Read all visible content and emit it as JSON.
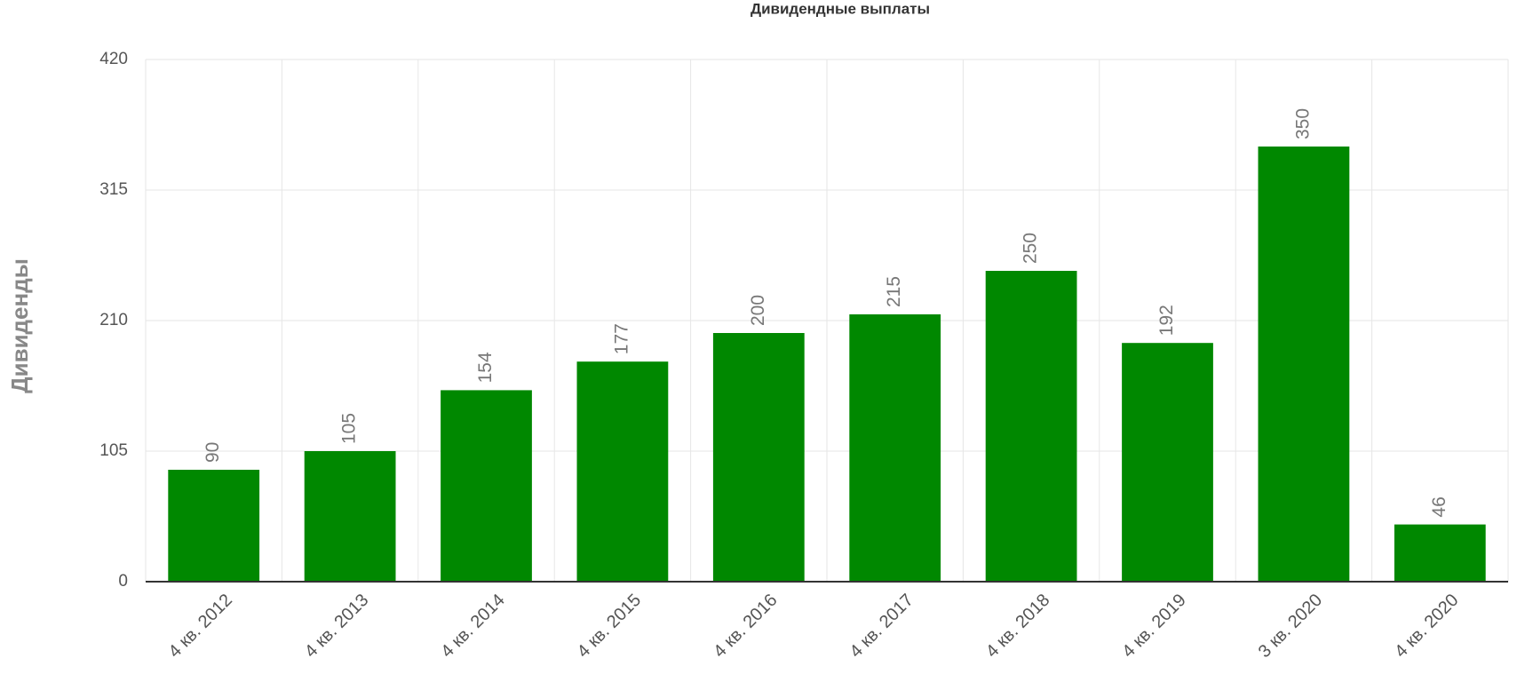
{
  "chart_data": {
    "type": "bar",
    "title": "Дивидендные выплаты",
    "y_label": "Дивиденды",
    "categories": [
      "4 кв. 2012",
      "4 кв. 2013",
      "4 кв. 2014",
      "4 кв. 2015",
      "4 кв. 2016",
      "4 кв. 2017",
      "4 кв. 2018",
      "4 кв. 2019",
      "3 кв. 2020",
      "4 кв. 2020"
    ],
    "values": [
      90,
      105,
      154,
      177,
      200,
      215,
      250,
      192,
      350,
      46
    ],
    "color": "#008800",
    "ylim": [
      0,
      420
    ],
    "yticks": [
      0,
      105,
      210,
      315,
      420
    ],
    "grid": true
  }
}
